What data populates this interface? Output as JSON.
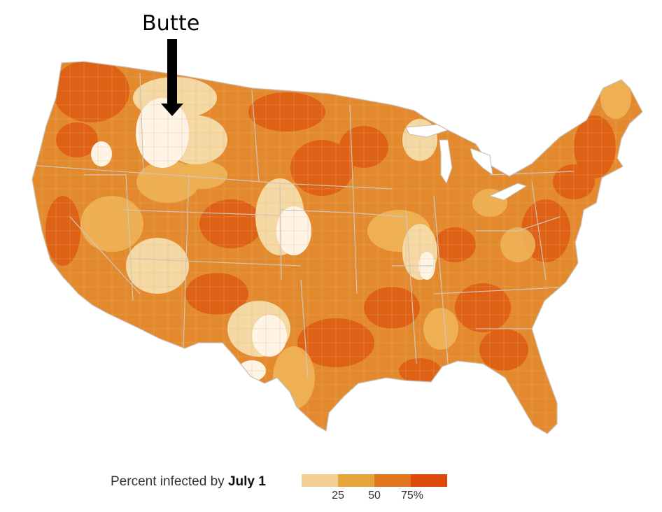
{
  "annotation": {
    "label": "Butte",
    "arrow_icon": "down-arrow-icon"
  },
  "legend": {
    "title_prefix": "Percent infected by ",
    "title_bold": "July 1",
    "ticks": [
      "25",
      "50",
      "75%"
    ],
    "colors": [
      "#f2d092",
      "#e5a53c",
      "#e2761f",
      "#dc4a0c"
    ]
  },
  "map": {
    "type": "choropleth",
    "region": "Contiguous United States, counties",
    "background_color": "#ffffff",
    "border_color": "#cfc6bb"
  }
}
